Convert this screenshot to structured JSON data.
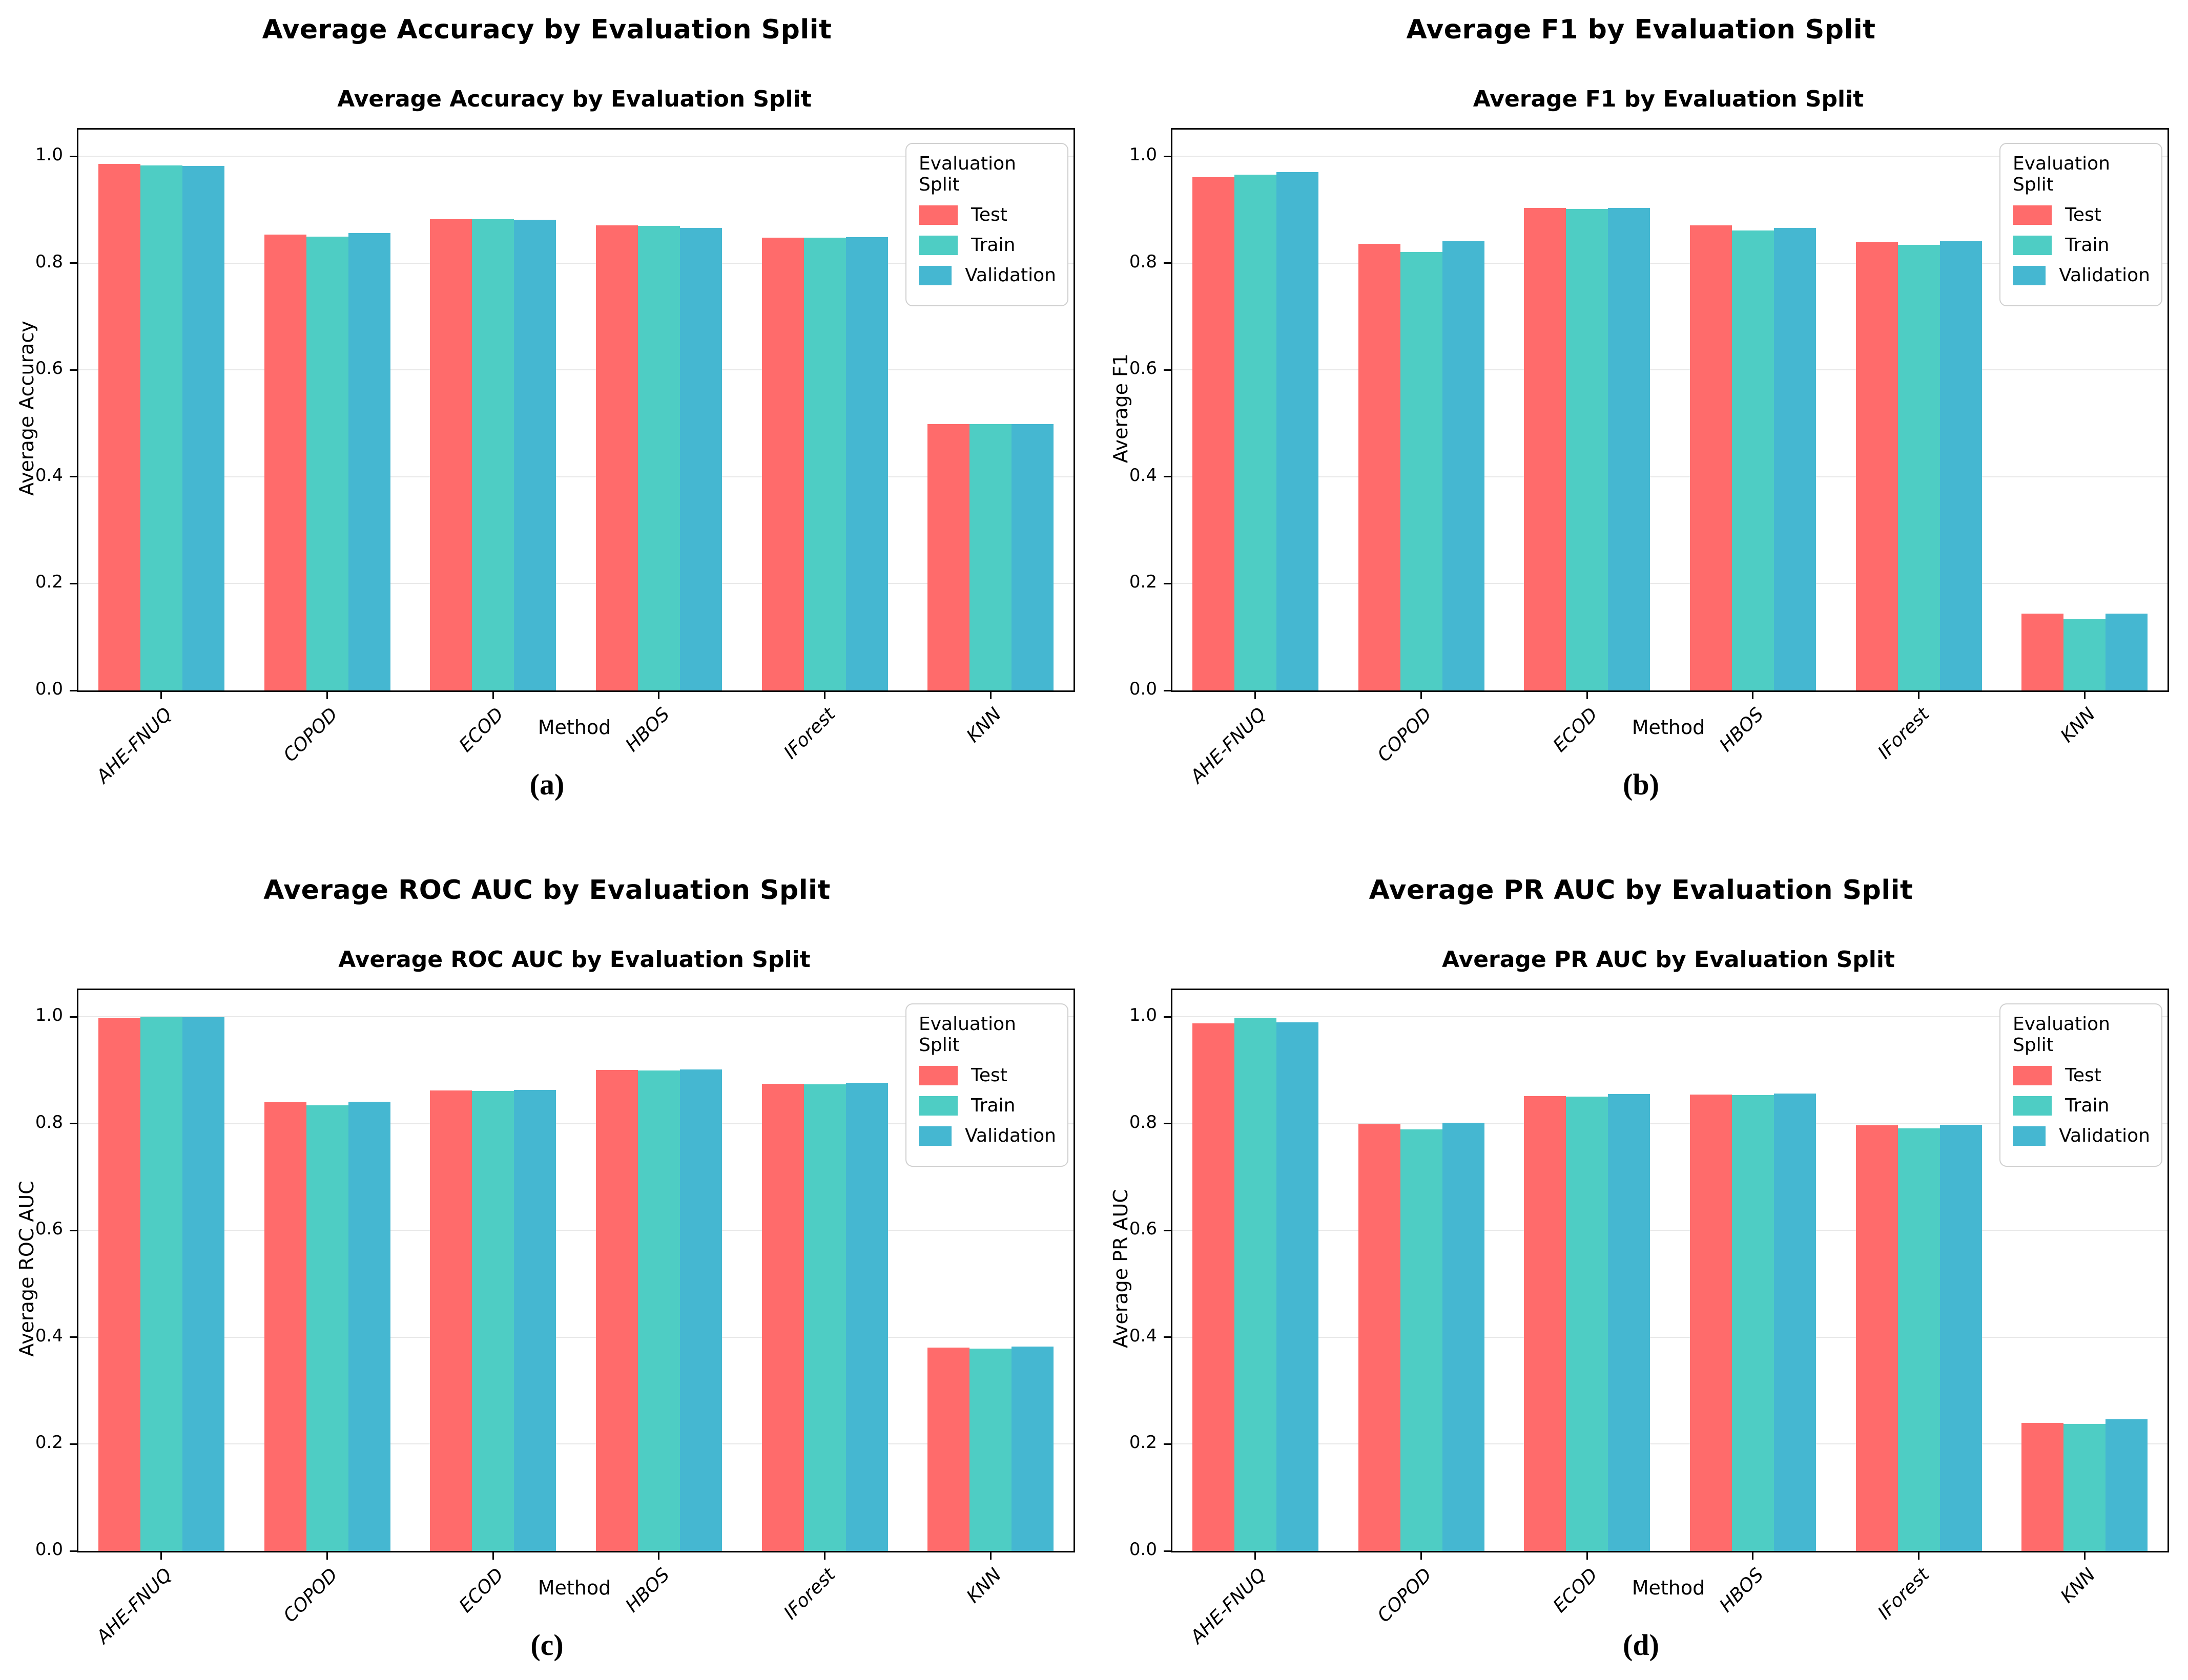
{
  "figure": {
    "background": "#ffffff",
    "grid_color": "#e8e8e8",
    "methods": [
      "AHE-FNUQ",
      "COPOD",
      "ECOD",
      "HBOS",
      "IForest",
      "KNN"
    ],
    "splits": [
      "Test",
      "Train",
      "Validation"
    ],
    "split_colors": {
      "Test": "#FF6B6B",
      "Train": "#4ECDC4",
      "Validation": "#45B7D1"
    }
  },
  "panels": [
    {
      "outer_title": "Average Accuracy by Evaluation Split",
      "caption": "(a)"
    },
    {
      "outer_title": "Average F1 by Evaluation Split",
      "caption": "(b)"
    },
    {
      "outer_title": "Average ROC AUC by Evaluation Split",
      "caption": "(c)"
    },
    {
      "outer_title": "Average PR AUC by Evaluation Split",
      "caption": "(d)"
    }
  ],
  "chart_data": [
    {
      "type": "bar",
      "title": "Average Accuracy by Evaluation Split",
      "xlabel": "Method",
      "ylabel": "Average Accuracy",
      "ylim": [
        0,
        1.05
      ],
      "yticks": [
        0.0,
        0.2,
        0.4,
        0.6,
        0.8,
        1.0
      ],
      "grid": true,
      "legend_title": "Evaluation Split",
      "legend_position": "upper right",
      "categories": [
        "AHE-FNUQ",
        "COPOD",
        "ECOD",
        "HBOS",
        "IForest",
        "KNN"
      ],
      "series": [
        {
          "name": "Test",
          "color": "#FF6B6B",
          "values": [
            0.986,
            0.853,
            0.882,
            0.871,
            0.848,
            0.499
          ]
        },
        {
          "name": "Train",
          "color": "#4ECDC4",
          "values": [
            0.983,
            0.85,
            0.882,
            0.87,
            0.848,
            0.499
          ]
        },
        {
          "name": "Validation",
          "color": "#45B7D1",
          "values": [
            0.982,
            0.856,
            0.881,
            0.866,
            0.849,
            0.499
          ]
        }
      ]
    },
    {
      "type": "bar",
      "title": "Average F1 by Evaluation Split",
      "xlabel": "Method",
      "ylabel": "Average F1",
      "ylim": [
        0,
        1.05
      ],
      "yticks": [
        0.0,
        0.2,
        0.4,
        0.6,
        0.8,
        1.0
      ],
      "grid": true,
      "legend_title": "Evaluation Split",
      "legend_position": "upper right",
      "categories": [
        "AHE-FNUQ",
        "COPOD",
        "ECOD",
        "HBOS",
        "IForest",
        "KNN"
      ],
      "series": [
        {
          "name": "Test",
          "color": "#FF6B6B",
          "values": [
            0.961,
            0.836,
            0.903,
            0.871,
            0.84,
            0.144
          ]
        },
        {
          "name": "Train",
          "color": "#4ECDC4",
          "values": [
            0.966,
            0.821,
            0.901,
            0.861,
            0.834,
            0.133
          ]
        },
        {
          "name": "Validation",
          "color": "#45B7D1",
          "values": [
            0.97,
            0.841,
            0.903,
            0.866,
            0.841,
            0.144
          ]
        }
      ]
    },
    {
      "type": "bar",
      "title": "Average ROC AUC by Evaluation Split",
      "xlabel": "Method",
      "ylabel": "Average ROC AUC",
      "ylim": [
        0,
        1.05
      ],
      "yticks": [
        0.0,
        0.2,
        0.4,
        0.6,
        0.8,
        1.0
      ],
      "grid": true,
      "legend_title": "Evaluation Split",
      "legend_position": "upper right",
      "categories": [
        "AHE-FNUQ",
        "COPOD",
        "ECOD",
        "HBOS",
        "IForest",
        "KNN"
      ],
      "series": [
        {
          "name": "Test",
          "color": "#FF6B6B",
          "values": [
            0.997,
            0.84,
            0.862,
            0.9,
            0.875,
            0.381
          ]
        },
        {
          "name": "Train",
          "color": "#4ECDC4",
          "values": [
            1.0,
            0.834,
            0.861,
            0.899,
            0.874,
            0.379
          ]
        },
        {
          "name": "Validation",
          "color": "#45B7D1",
          "values": [
            0.999,
            0.841,
            0.863,
            0.901,
            0.876,
            0.383
          ]
        }
      ]
    },
    {
      "type": "bar",
      "title": "Average PR AUC by Evaluation Split",
      "xlabel": "Method",
      "ylabel": "Average PR AUC",
      "ylim": [
        0,
        1.05
      ],
      "yticks": [
        0.0,
        0.2,
        0.4,
        0.6,
        0.8,
        1.0
      ],
      "grid": true,
      "legend_title": "Evaluation Split",
      "legend_position": "upper right",
      "categories": [
        "AHE-FNUQ",
        "COPOD",
        "ECOD",
        "HBOS",
        "IForest",
        "KNN"
      ],
      "series": [
        {
          "name": "Test",
          "color": "#FF6B6B",
          "values": [
            0.988,
            0.799,
            0.852,
            0.854,
            0.797,
            0.24
          ]
        },
        {
          "name": "Train",
          "color": "#4ECDC4",
          "values": [
            0.998,
            0.789,
            0.851,
            0.853,
            0.791,
            0.238
          ]
        },
        {
          "name": "Validation",
          "color": "#45B7D1",
          "values": [
            0.99,
            0.802,
            0.855,
            0.856,
            0.798,
            0.246
          ]
        }
      ]
    }
  ]
}
